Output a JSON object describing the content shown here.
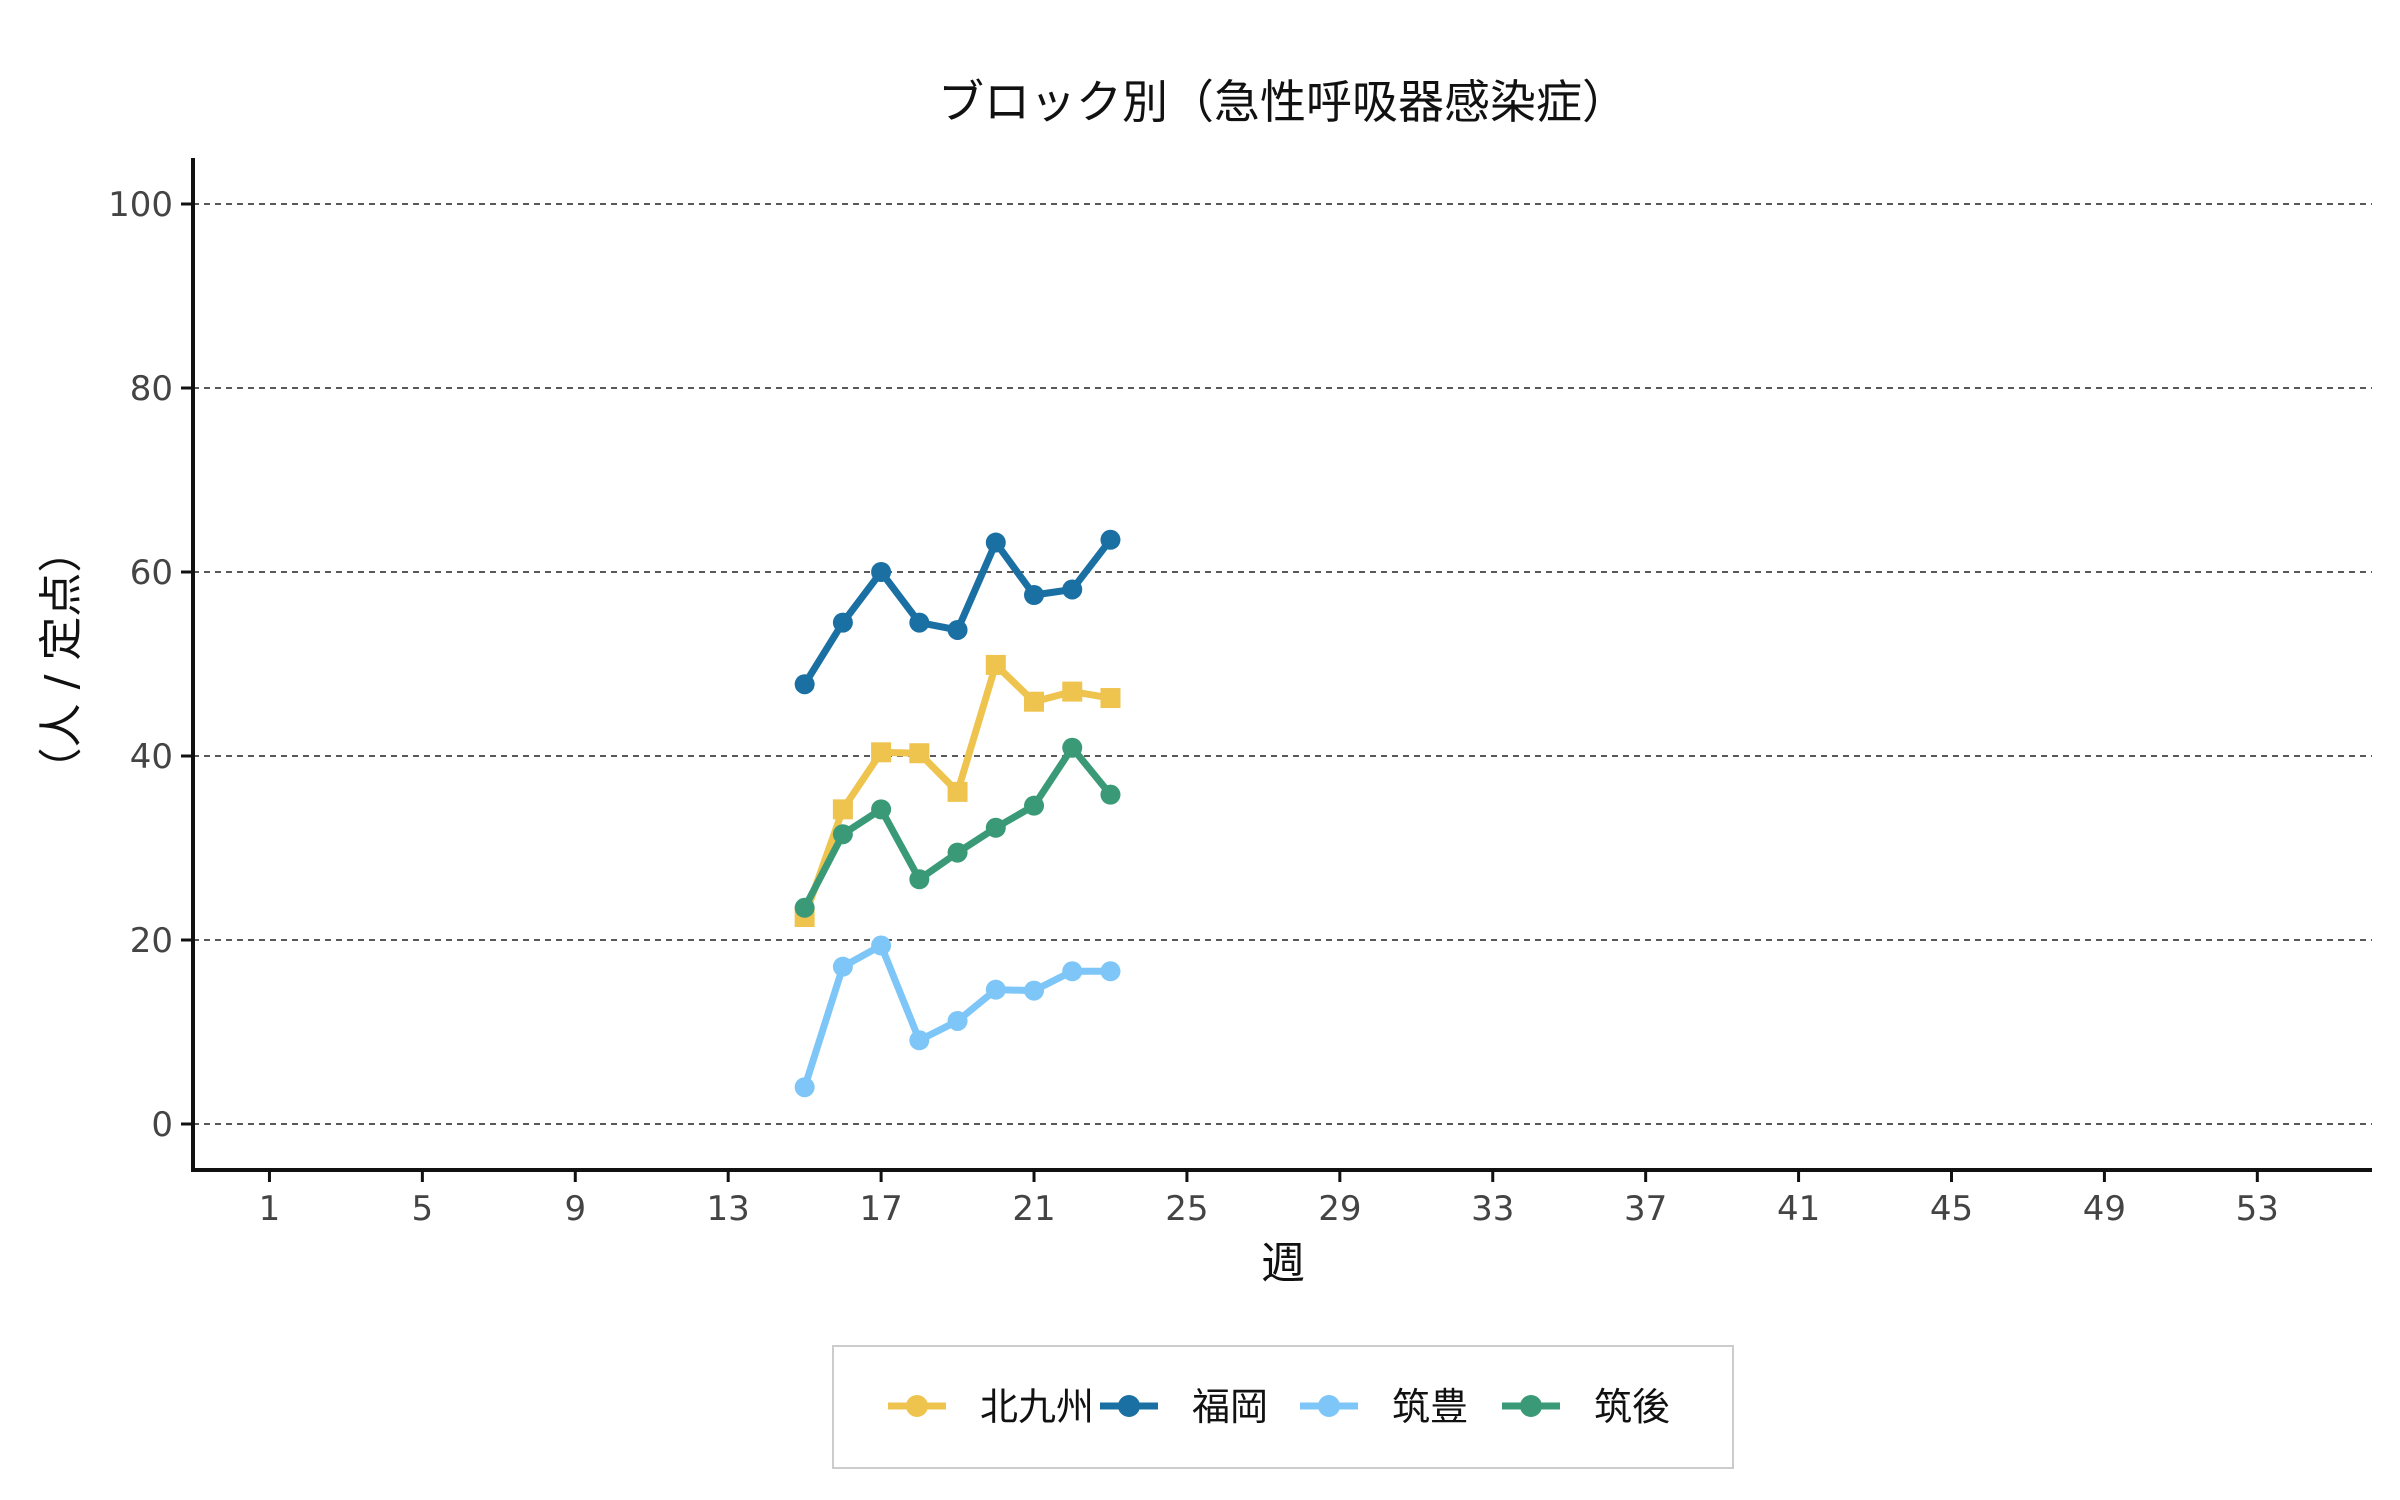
{
  "chart_data": {
    "type": "line",
    "title": "ブロック別（急性呼吸器感染症）",
    "xlabel": "週",
    "ylabel": "（人 / 定点）",
    "xlim": [
      -1,
      56
    ],
    "ylim": [
      -5,
      105
    ],
    "x_ticks": [
      1,
      5,
      9,
      13,
      17,
      21,
      25,
      29,
      33,
      37,
      41,
      45,
      49,
      53
    ],
    "y_ticks": [
      0,
      20,
      40,
      60,
      80,
      100
    ],
    "grid": "horizontal-dashed",
    "legend_position": "bottom",
    "x": [
      15,
      16,
      17,
      18,
      19,
      20,
      21,
      22,
      23
    ],
    "series": [
      {
        "name": "北九州",
        "color": "#EEC44F",
        "marker": "square",
        "values": [
          22.5,
          34.2,
          40.4,
          40.3,
          36.1,
          49.9,
          45.9,
          47.0,
          46.3
        ]
      },
      {
        "name": "福岡",
        "color": "#1A6FA3",
        "marker": "circle",
        "values": [
          47.8,
          54.5,
          60.0,
          54.5,
          53.7,
          63.2,
          57.5,
          58.1,
          63.5
        ]
      },
      {
        "name": "筑豊",
        "color": "#7DC6F7",
        "marker": "circle",
        "values": [
          4.0,
          17.1,
          19.4,
          9.1,
          11.2,
          14.6,
          14.5,
          16.6,
          16.6
        ]
      },
      {
        "name": "筑後",
        "color": "#3A9A78",
        "marker": "circle",
        "values": [
          23.5,
          31.5,
          34.2,
          26.6,
          29.5,
          32.2,
          34.6,
          40.9,
          35.8
        ]
      }
    ]
  }
}
